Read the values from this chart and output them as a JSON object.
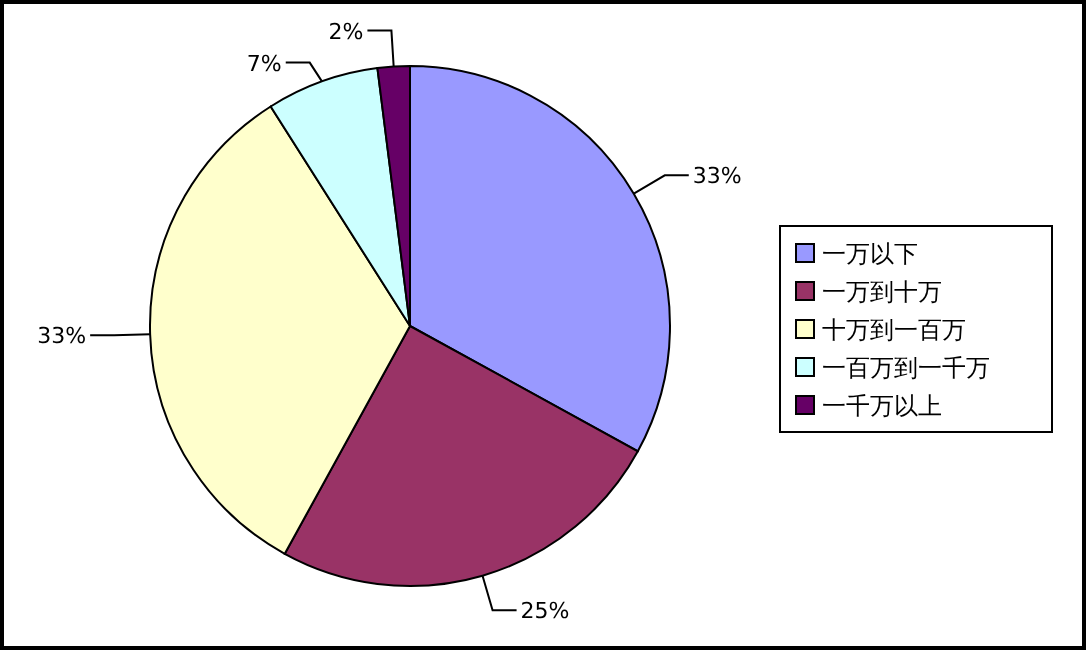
{
  "chart_data": {
    "type": "pie",
    "categories": [
      "一万以下",
      "一万到十万",
      "十万到一百万",
      "一百万到一千万",
      "一千万以上"
    ],
    "values": [
      33,
      25,
      33,
      7,
      2
    ],
    "value_labels": [
      "33%",
      "25%",
      "33%",
      "7%",
      "2%"
    ],
    "colors": [
      "#9999ff",
      "#993366",
      "#ffffcc",
      "#ccffff",
      "#660066"
    ],
    "legend": "right"
  }
}
